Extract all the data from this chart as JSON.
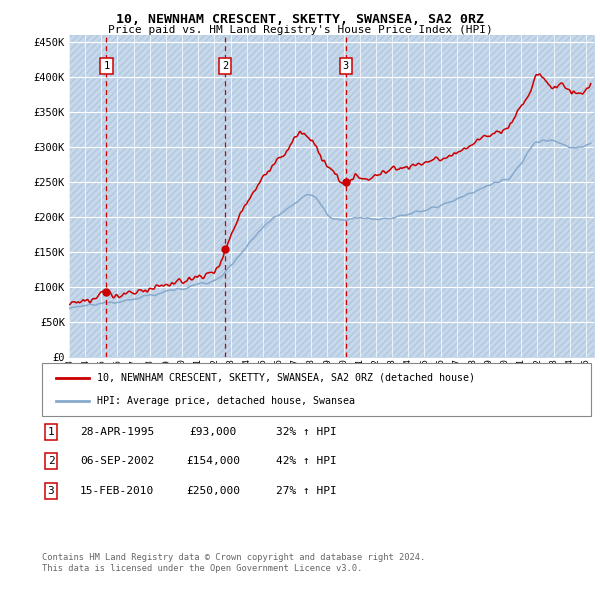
{
  "title1": "10, NEWNHAM CRESCENT, SKETTY, SWANSEA, SA2 0RZ",
  "title2": "Price paid vs. HM Land Registry's House Price Index (HPI)",
  "ylabel_ticks": [
    "£0",
    "£50K",
    "£100K",
    "£150K",
    "£200K",
    "£250K",
    "£300K",
    "£350K",
    "£400K",
    "£450K"
  ],
  "ytick_values": [
    0,
    50000,
    100000,
    150000,
    200000,
    250000,
    300000,
    350000,
    400000,
    450000
  ],
  "ylim": [
    0,
    460000
  ],
  "xlim_start": 1993.0,
  "xlim_end": 2025.5,
  "bg_color": "#dce6f1",
  "hatch_color": "#c8d8eb",
  "grid_color": "#ffffff",
  "red_line_color": "#cc0000",
  "blue_line_color": "#88aacc",
  "sale_points": [
    {
      "year": 1995.32,
      "price": 93000,
      "label": "1"
    },
    {
      "year": 2002.68,
      "price": 154000,
      "label": "2"
    },
    {
      "year": 2010.12,
      "price": 250000,
      "label": "3"
    }
  ],
  "vline_dates": [
    1995.32,
    2002.68,
    2010.12
  ],
  "legend_red": "10, NEWNHAM CRESCENT, SKETTY, SWANSEA, SA2 0RZ (detached house)",
  "legend_blue": "HPI: Average price, detached house, Swansea",
  "table_rows": [
    {
      "num": "1",
      "date": "28-APR-1995",
      "price": "£93,000",
      "change": "32% ↑ HPI"
    },
    {
      "num": "2",
      "date": "06-SEP-2002",
      "price": "£154,000",
      "change": "42% ↑ HPI"
    },
    {
      "num": "3",
      "date": "15-FEB-2010",
      "price": "£250,000",
      "change": "27% ↑ HPI"
    }
  ],
  "footnote1": "Contains HM Land Registry data © Crown copyright and database right 2024.",
  "footnote2": "This data is licensed under the Open Government Licence v3.0."
}
